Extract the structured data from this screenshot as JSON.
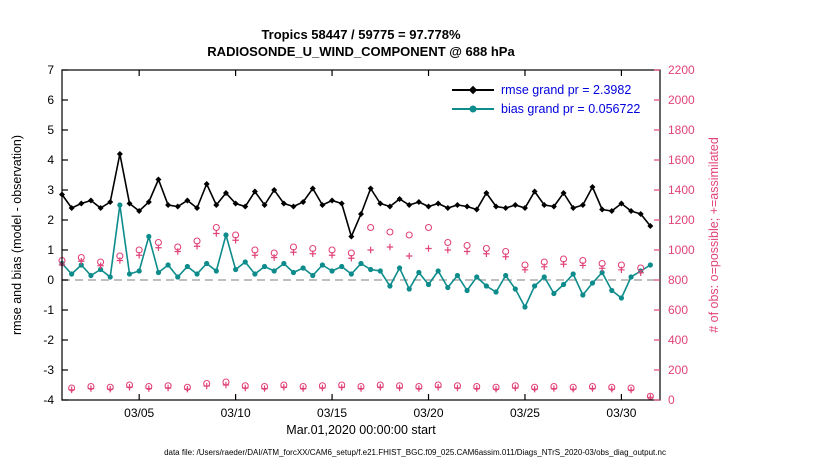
{
  "title_line1": "Tropics 58447 / 59775 = 97.778%",
  "title_line2": "RADIOSONDE_U_WIND_COMPONENT @ 688 hPa",
  "legend": {
    "rmse_label": "rmse grand pr = 2.3982",
    "bias_label": "bias grand pr = 0.056722"
  },
  "axes": {
    "left_label": "rmse and bias (model - observation)",
    "right_label": "# of obs: o=possible; +=assimilated",
    "x_label": "Mar.01,2020 00:00:00 start",
    "left_range": [
      -4,
      7
    ],
    "right_range": [
      0,
      2200
    ],
    "x_range": [
      1,
      32
    ],
    "left_ticks": [
      -4,
      -3,
      -2,
      -1,
      0,
      1,
      2,
      3,
      4,
      5,
      6,
      7
    ],
    "right_ticks": [
      0,
      200,
      400,
      600,
      800,
      1000,
      1200,
      1400,
      1600,
      1800,
      2000,
      2200
    ],
    "x_ticks": [
      {
        "day": 5,
        "label": "03/05"
      },
      {
        "day": 10,
        "label": "03/10"
      },
      {
        "day": 15,
        "label": "03/15"
      },
      {
        "day": 20,
        "label": "03/20"
      },
      {
        "day": 25,
        "label": "03/25"
      },
      {
        "day": 30,
        "label": "03/30"
      }
    ]
  },
  "footer": "data file: /Users/raeder/DAI/ATM_forcXX/CAM6_setup/f.e21.FHIST_BGC.f09_025.CAM6assim.011/Diags_NTrS_2020-03/obs_diag_output.nc",
  "colors": {
    "rmse": "#000000",
    "bias": "#0e8c8c",
    "obs": "#e0437a",
    "legend_text": "#0000dd",
    "zero_line": "#aaaaaa"
  },
  "chart_data": {
    "type": "line",
    "title": "Tropics 58447 / 59775 = 97.778% / RADIOSONDE_U_WIND_COMPONENT @ 688 hPa",
    "xlabel": "Mar.01,2020 00:00:00 start",
    "ylabel_left": "rmse and bias (model - observation)",
    "ylabel_right": "# of obs: o=possible; +=assimilated",
    "ylim_left": [
      -4,
      7
    ],
    "ylim_right": [
      0,
      2200
    ],
    "grid": false,
    "legend_position": "top-right-inside",
    "rmse_grand_prior": 2.3982,
    "bias_grand_prior": 0.056722,
    "x_days": [
      1,
      1.5,
      2,
      2.5,
      3,
      3.5,
      4,
      4.5,
      5,
      5.5,
      6,
      6.5,
      7,
      7.5,
      8,
      8.5,
      9,
      9.5,
      10,
      10.5,
      11,
      11.5,
      12,
      12.5,
      13,
      13.5,
      14,
      14.5,
      15,
      15.5,
      16,
      16.5,
      17,
      17.5,
      18,
      18.5,
      19,
      19.5,
      20,
      20.5,
      21,
      21.5,
      22,
      22.5,
      23,
      23.5,
      24,
      24.5,
      25,
      25.5,
      26,
      26.5,
      27,
      27.5,
      28,
      28.5,
      29,
      29.5,
      30,
      30.5,
      31,
      31.5
    ],
    "series": [
      {
        "name": "rmse",
        "axis": "left",
        "marker": "diamond",
        "color": "#000000",
        "values": [
          2.85,
          2.4,
          2.55,
          2.65,
          2.4,
          2.6,
          4.2,
          2.55,
          2.3,
          2.6,
          3.35,
          2.5,
          2.45,
          2.65,
          2.4,
          3.2,
          2.5,
          2.9,
          2.55,
          2.45,
          2.95,
          2.5,
          3.0,
          2.55,
          2.45,
          2.6,
          3.05,
          2.5,
          2.65,
          2.55,
          1.45,
          2.2,
          3.05,
          2.55,
          2.45,
          2.7,
          2.5,
          2.6,
          2.45,
          2.55,
          2.4,
          2.5,
          2.45,
          2.35,
          2.9,
          2.45,
          2.4,
          2.5,
          2.4,
          2.95,
          2.5,
          2.45,
          2.9,
          2.4,
          2.5,
          3.1,
          2.35,
          2.3,
          2.55,
          2.3,
          2.2,
          1.8
        ]
      },
      {
        "name": "bias",
        "axis": "left",
        "marker": "circle-filled",
        "color": "#0e8c8c",
        "values": [
          0.55,
          0.2,
          0.5,
          0.15,
          0.35,
          0.1,
          2.5,
          0.2,
          0.3,
          1.45,
          0.25,
          0.5,
          0.1,
          0.45,
          0.2,
          0.55,
          0.3,
          1.5,
          0.35,
          0.6,
          0.2,
          0.45,
          0.3,
          0.55,
          0.25,
          0.4,
          0.15,
          0.5,
          0.3,
          0.45,
          0.2,
          0.55,
          0.35,
          0.3,
          -0.2,
          0.4,
          -0.3,
          0.25,
          -0.15,
          0.3,
          -0.25,
          0.15,
          -0.35,
          0.1,
          -0.2,
          -0.4,
          0.15,
          -0.3,
          -0.9,
          -0.2,
          0.1,
          -0.45,
          -0.15,
          0.2,
          -0.5,
          -0.1,
          0.25,
          -0.35,
          -0.6,
          0.1,
          0.3,
          0.5
        ]
      },
      {
        "name": "possible",
        "axis": "right",
        "marker": "circle-open",
        "color": "#e0437a",
        "values": [
          930,
          80,
          950,
          90,
          920,
          85,
          960,
          100,
          1000,
          90,
          1050,
          95,
          1020,
          85,
          1060,
          110,
          1150,
          120,
          1100,
          95,
          1000,
          90,
          980,
          100,
          1020,
          90,
          1010,
          95,
          1000,
          100,
          980,
          90,
          1150,
          100,
          1120,
          95,
          1100,
          90,
          1150,
          100,
          1050,
          95,
          1030,
          90,
          1010,
          85,
          990,
          95,
          900,
          85,
          920,
          90,
          940,
          85,
          930,
          90,
          910,
          85,
          900,
          80,
          880,
          25
        ]
      },
      {
        "name": "assimilated",
        "axis": "right",
        "marker": "plus",
        "color": "#e0437a",
        "values": [
          900,
          68,
          925,
          76,
          895,
          72,
          930,
          85,
          965,
          76,
          1015,
          80,
          990,
          72,
          1025,
          93,
          1110,
          100,
          1065,
          80,
          965,
          76,
          950,
          85,
          985,
          76,
          975,
          80,
          965,
          84,
          945,
          76,
          1000,
          85,
          1020,
          80,
          960,
          76,
          1010,
          85,
          1000,
          80,
          990,
          76,
          975,
          72,
          955,
          80,
          868,
          72,
          888,
          76,
          905,
          72,
          897,
          76,
          878,
          72,
          868,
          66,
          848,
          18
        ]
      }
    ]
  }
}
